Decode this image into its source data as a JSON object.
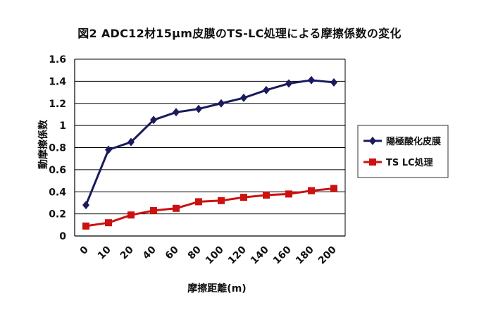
{
  "chart_data": {
    "type": "line",
    "title": "図2 ADC12材15μm皮膜のTS-LC処理による摩擦係数の変化",
    "xlabel": "摩擦距離(m)",
    "ylabel": "動摩擦係数",
    "categories": [
      "0",
      "10",
      "20",
      "40",
      "60",
      "80",
      "100",
      "120",
      "140",
      "160",
      "180",
      "200"
    ],
    "ylim": [
      0,
      1.6
    ],
    "yticks": [
      "0",
      "0.2",
      "0.4",
      "0.6",
      "0.8",
      "1",
      "1.2",
      "1.4",
      "1.6"
    ],
    "grid": true,
    "legend_position": "right",
    "series": [
      {
        "name": "陽極酸化皮膜",
        "color": "#1a1a5e",
        "marker": "diamond",
        "values": [
          0.28,
          0.78,
          0.85,
          1.05,
          1.12,
          1.15,
          1.2,
          1.25,
          1.32,
          1.38,
          1.41,
          1.39
        ]
      },
      {
        "name": "TS LC処理",
        "color": "#cc1111",
        "marker": "square",
        "values": [
          0.09,
          0.12,
          0.19,
          0.23,
          0.25,
          0.31,
          0.32,
          0.35,
          0.37,
          0.38,
          0.41,
          0.43
        ]
      }
    ]
  }
}
